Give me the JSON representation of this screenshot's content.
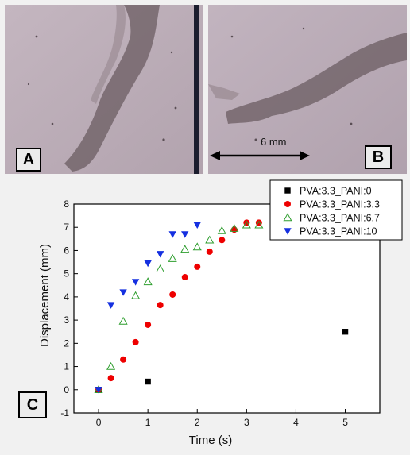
{
  "panels": {
    "a_label": "A",
    "b_label": "B",
    "c_label": "C",
    "scale_label": "6 mm"
  },
  "colors": {
    "photo_background": "#b8a9b4",
    "specimen": "#6e6065"
  },
  "chart_data": {
    "type": "scatter",
    "xlabel": "Time (s)",
    "ylabel": "Displacement (mm)",
    "xlim": [
      -0.5,
      5.7
    ],
    "ylim": [
      -1,
      8
    ],
    "xticks": [
      0,
      1,
      2,
      3,
      4,
      5
    ],
    "yticks": [
      -1,
      0,
      1,
      2,
      3,
      4,
      5,
      6,
      7,
      8
    ],
    "grid": false,
    "legend_position": "top-right",
    "series": [
      {
        "name": "PVA:3.3_PANI:0",
        "marker": "square",
        "color": "#000000",
        "x": [
          0,
          1,
          5
        ],
        "y": [
          0,
          0.35,
          2.5
        ]
      },
      {
        "name": "PVA:3.3_PANI:3.3",
        "marker": "circle",
        "color": "#ee0000",
        "x": [
          0,
          0.25,
          0.5,
          0.75,
          1,
          1.25,
          1.5,
          1.75,
          2,
          2.25,
          2.5,
          2.75,
          3,
          3.25
        ],
        "y": [
          0,
          0.5,
          1.3,
          2.05,
          2.8,
          3.65,
          4.1,
          4.85,
          5.3,
          5.95,
          6.45,
          6.9,
          7.2,
          7.2
        ]
      },
      {
        "name": "PVA:3.3_PANI:6.7",
        "marker": "triangle-up-open",
        "color": "#2f9e2f",
        "x": [
          0,
          0.25,
          0.5,
          0.75,
          1,
          1.25,
          1.5,
          1.75,
          2,
          2.25,
          2.5,
          2.75,
          3,
          3.25
        ],
        "y": [
          0,
          1,
          2.95,
          4.05,
          4.65,
          5.2,
          5.65,
          6.05,
          6.15,
          6.45,
          6.85,
          6.95,
          7.1,
          7.1
        ]
      },
      {
        "name": "PVA:3.3_PANI:10",
        "marker": "triangle-down",
        "color": "#1530e0",
        "x": [
          0,
          0.25,
          0.5,
          0.75,
          1,
          1.25,
          1.5,
          1.75,
          2
        ],
        "y": [
          0,
          3.65,
          4.2,
          4.65,
          5.45,
          5.85,
          6.7,
          6.7,
          7.1
        ]
      }
    ]
  }
}
